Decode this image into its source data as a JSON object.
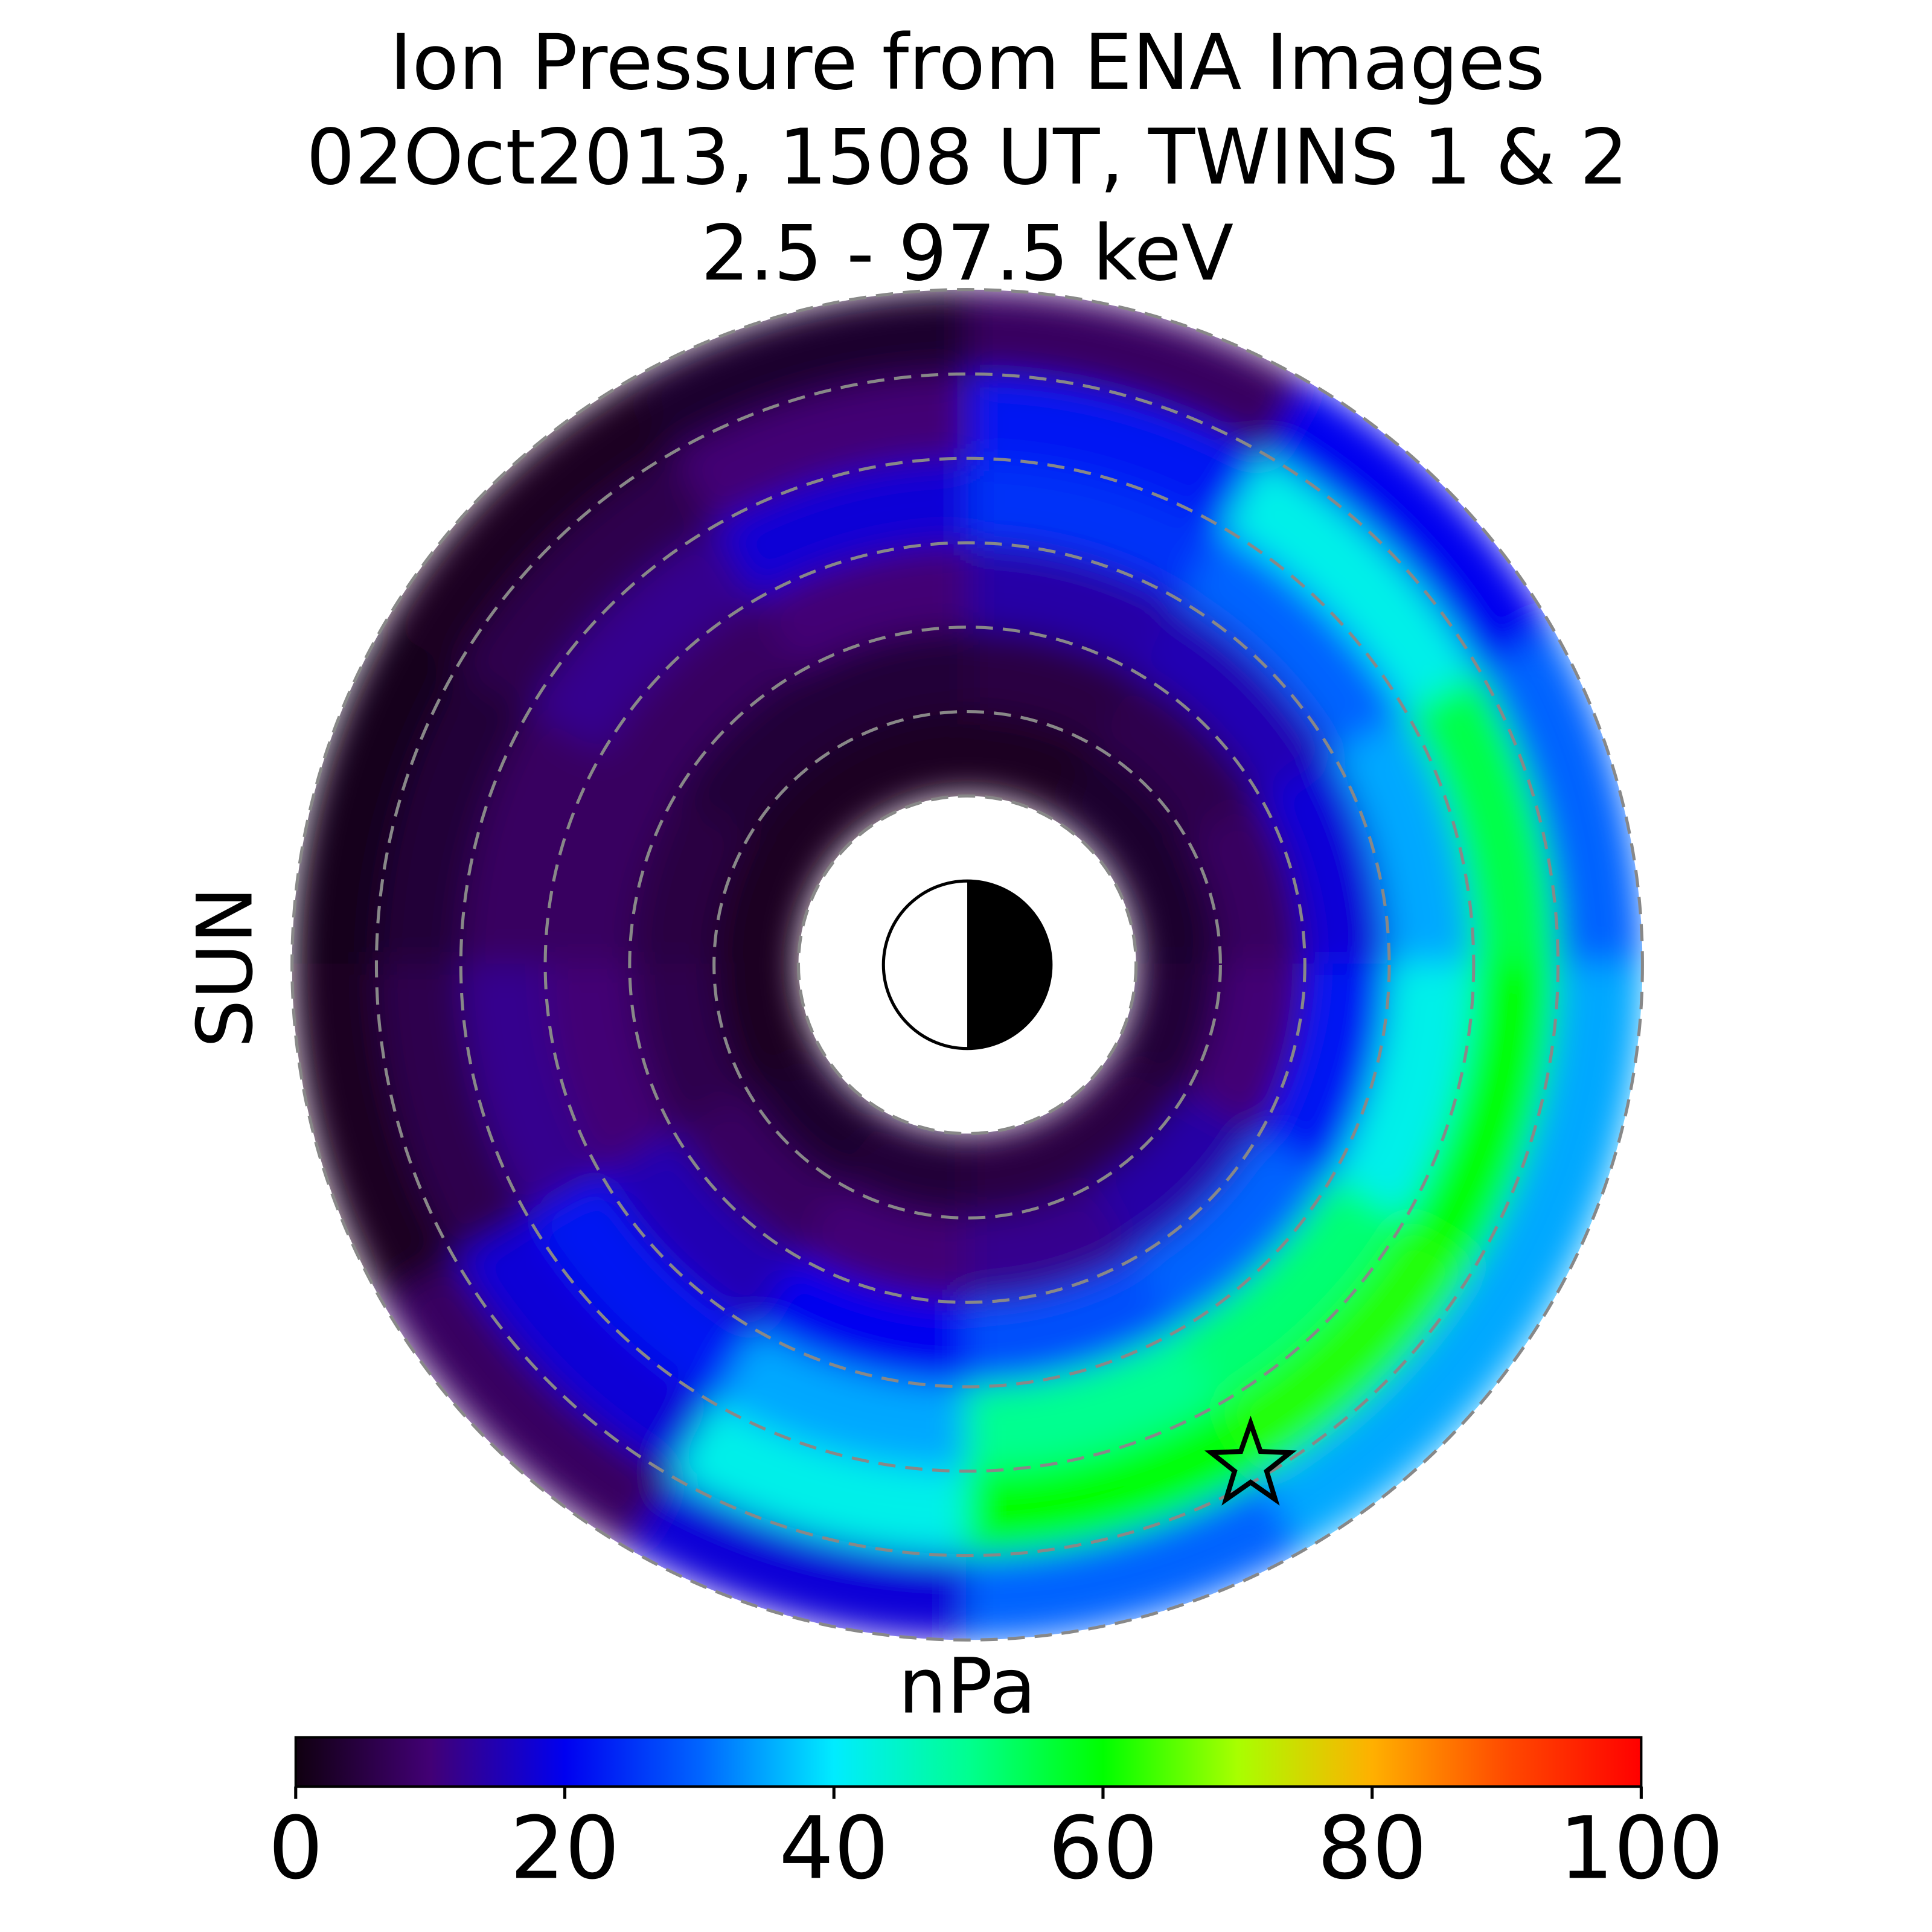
{
  "chart_data": {
    "type": "polar-heatmap",
    "title_lines": [
      "Ion Pressure from  ENA Images",
      "02Oct2013, 1508 UT,  TWINS 1 & 2",
      "2.5 - 97.5 keV"
    ],
    "sun_label": "SUN",
    "sun_color": "#f5a000",
    "colorbar_label": "nPa",
    "clim": [
      0,
      100
    ],
    "cticks": [
      0,
      20,
      40,
      60,
      80,
      100
    ],
    "colormap": [
      "#100010",
      "#420075",
      "#0000f0",
      "#0064ff",
      "#00ecff",
      "#00ff90",
      "#00ff00",
      "#a8ff00",
      "#ffb000",
      "#ff4a00",
      "#ff0000"
    ],
    "r_edges": [
      2,
      3,
      4,
      5,
      6,
      7,
      8
    ],
    "angle_edges": [
      0,
      30,
      60,
      90,
      120,
      150,
      180,
      210,
      240,
      270,
      300,
      330,
      360
    ],
    "values": [
      [
        3,
        8,
        18,
        35,
        55,
        30
      ],
      [
        3,
        6,
        15,
        30,
        42,
        20
      ],
      [
        2,
        5,
        14,
        25,
        22,
        8
      ],
      [
        2,
        4,
        10,
        18,
        10,
        3
      ],
      [
        2,
        4,
        8,
        12,
        6,
        2
      ],
      [
        2,
        5,
        8,
        8,
        4,
        1
      ],
      [
        2,
        6,
        10,
        12,
        6,
        2
      ],
      [
        3,
        8,
        15,
        22,
        18,
        8
      ],
      [
        4,
        10,
        20,
        35,
        42,
        18
      ],
      [
        5,
        12,
        28,
        50,
        60,
        30
      ],
      [
        5,
        14,
        30,
        52,
        62,
        35
      ],
      [
        4,
        10,
        22,
        42,
        60,
        35
      ]
    ]
  }
}
